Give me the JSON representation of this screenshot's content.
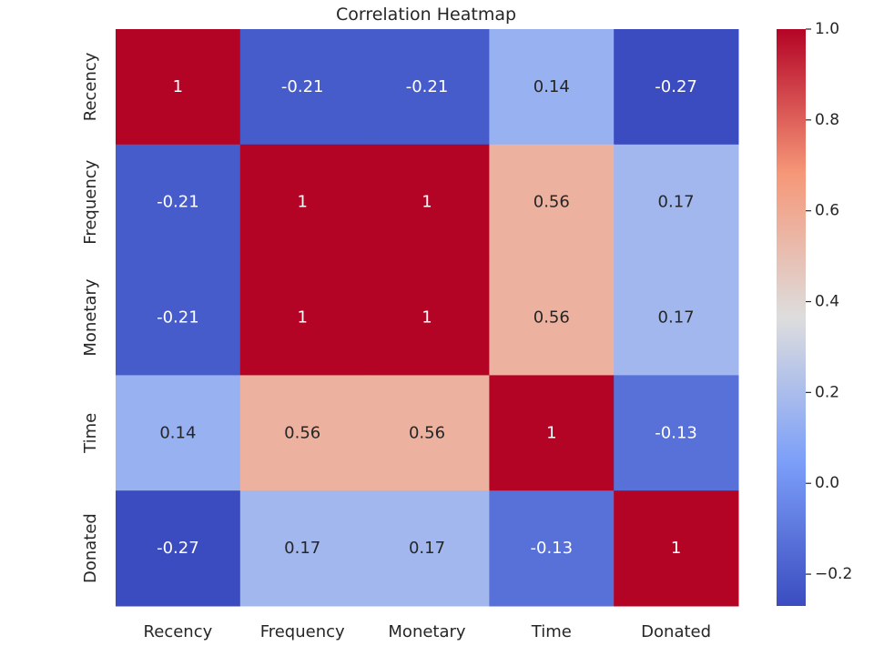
{
  "chart_data": {
    "type": "heatmap",
    "title": "Correlation Heatmap",
    "x_categories": [
      "Recency",
      "Frequency",
      "Monetary",
      "Time",
      "Donated"
    ],
    "y_categories": [
      "Recency",
      "Frequency",
      "Monetary",
      "Time",
      "Donated"
    ],
    "values": [
      [
        1,
        -0.21,
        -0.21,
        0.14,
        -0.27
      ],
      [
        -0.21,
        1,
        1,
        0.56,
        0.17
      ],
      [
        -0.21,
        1,
        1,
        0.56,
        0.17
      ],
      [
        0.14,
        0.56,
        0.56,
        1,
        -0.13
      ],
      [
        -0.27,
        0.17,
        0.17,
        -0.13,
        1
      ]
    ],
    "colormap": "coolwarm",
    "colorbar": {
      "range": [
        -0.27,
        1.0
      ],
      "ticks": [
        -0.2,
        0.0,
        0.2,
        0.4,
        0.6,
        0.8,
        1.0
      ],
      "tick_labels": [
        "−0.2",
        "0.0",
        "0.2",
        "0.4",
        "0.6",
        "0.8",
        "1.0"
      ]
    },
    "grid": false
  }
}
